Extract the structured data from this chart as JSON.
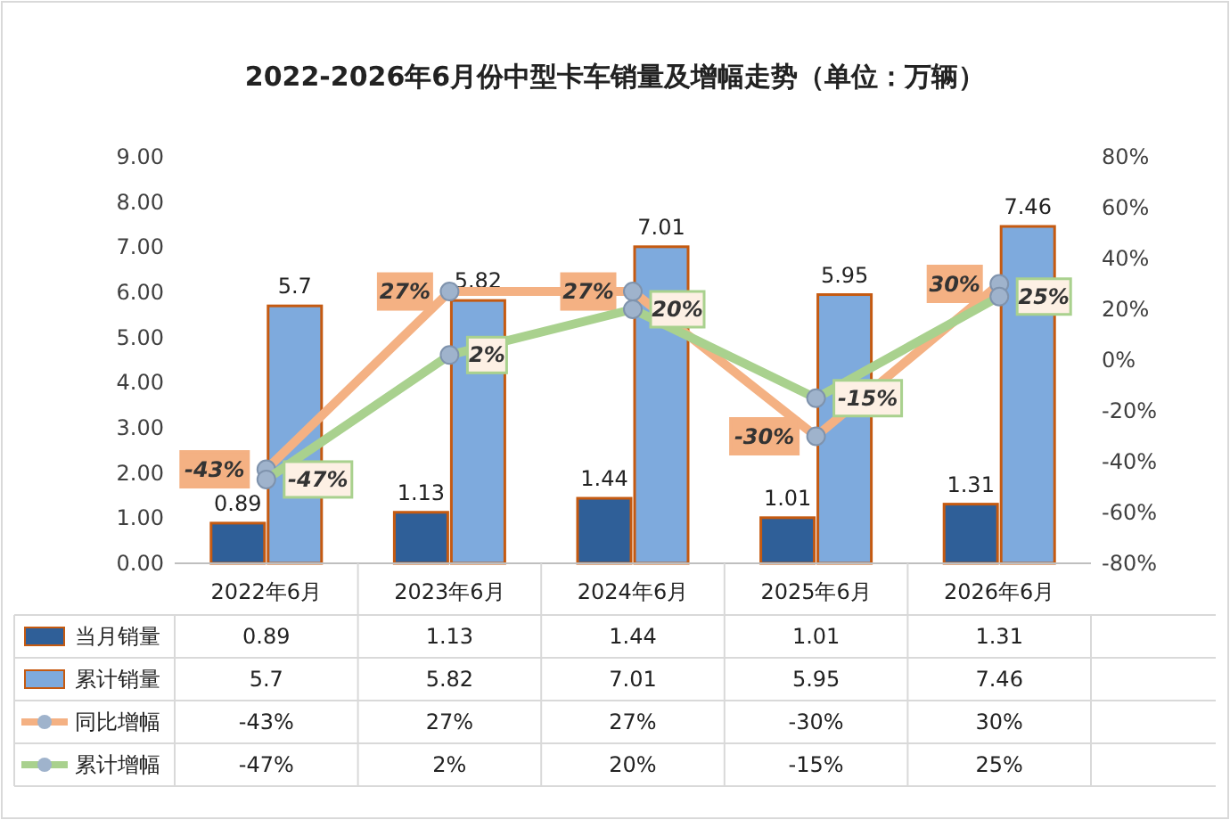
{
  "chart_data": {
    "type": "bar",
    "title": "2022-2026年6月份中型卡车销量及增幅走势（单位：万辆）",
    "categories": [
      "2022年6月",
      "2023年6月",
      "2024年6月",
      "2025年6月",
      "2026年6月"
    ],
    "series": [
      {
        "name": "当月销量",
        "color": "#2f5f98",
        "values": [
          0.89,
          1.13,
          1.44,
          1.01,
          1.31
        ],
        "value_labels": [
          "0.89",
          "1.13",
          "1.44",
          "1.01",
          "1.31"
        ]
      },
      {
        "name": "累计销量",
        "color": "#7eaadd",
        "values": [
          5.7,
          5.82,
          7.01,
          5.95,
          7.46
        ],
        "value_labels": [
          "5.7",
          "5.82",
          "7.01",
          "5.95",
          "7.46"
        ]
      },
      {
        "name": "同比增幅",
        "type": "line",
        "axis": "y2",
        "color": "#f4b183",
        "values": [
          -43,
          27,
          27,
          -30,
          30
        ],
        "value_labels": [
          "-43%",
          "27%",
          "27%",
          "-30%",
          "30%"
        ]
      },
      {
        "name": "累计增幅",
        "type": "line",
        "axis": "y2",
        "color": "#a9d18e",
        "values": [
          -47,
          2,
          20,
          -15,
          25
        ],
        "value_labels": [
          "-47%",
          "2%",
          "20%",
          "-15%",
          "25%"
        ]
      }
    ],
    "ylim": [
      0,
      9
    ],
    "yticks": [
      {
        "value": 0,
        "label": "0.00"
      },
      {
        "value": 1,
        "label": "1.00"
      },
      {
        "value": 2,
        "label": "2.00"
      },
      {
        "value": 3,
        "label": "3.00"
      },
      {
        "value": 4,
        "label": "4.00"
      },
      {
        "value": 5,
        "label": "5.00"
      },
      {
        "value": 6,
        "label": "6.00"
      },
      {
        "value": 7,
        "label": "7.00"
      },
      {
        "value": 8,
        "label": "8.00"
      },
      {
        "value": 9,
        "label": "9.00"
      }
    ],
    "y2lim": [
      -80,
      80
    ],
    "y2ticks": [
      {
        "value": -80,
        "label": "-80%"
      },
      {
        "value": -60,
        "label": "-60%"
      },
      {
        "value": -40,
        "label": "-40%"
      },
      {
        "value": -20,
        "label": "-20%"
      },
      {
        "value": 0,
        "label": "0%"
      },
      {
        "value": 20,
        "label": "20%"
      },
      {
        "value": 40,
        "label": "40%"
      },
      {
        "value": 60,
        "label": "60%"
      },
      {
        "value": 80,
        "label": "80%"
      }
    ],
    "marker": "circle",
    "legend": "bottom",
    "grid": false
  }
}
